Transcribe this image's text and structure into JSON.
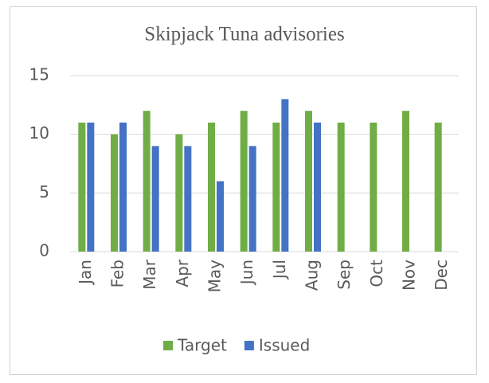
{
  "chart_data": {
    "type": "bar",
    "title": "Skipjack Tuna advisories",
    "categories": [
      "Jan",
      "Feb",
      "Mar",
      "Apr",
      "May",
      "Jun",
      "Jul",
      "Aug",
      "Sep",
      "Oct",
      "Nov",
      "Dec"
    ],
    "series": [
      {
        "name": "Target",
        "color": "#70ad47",
        "values": [
          11,
          10,
          12,
          10,
          11,
          12,
          11,
          12,
          11,
          11,
          12,
          11
        ]
      },
      {
        "name": "Issued",
        "color": "#4472c4",
        "values": [
          11,
          11,
          9,
          9,
          6,
          9,
          13,
          11,
          null,
          null,
          null,
          null
        ]
      }
    ],
    "ylim": [
      0,
      15
    ],
    "yticks": [
      0,
      5,
      10,
      15
    ],
    "grid": true,
    "legend": "bottom"
  }
}
